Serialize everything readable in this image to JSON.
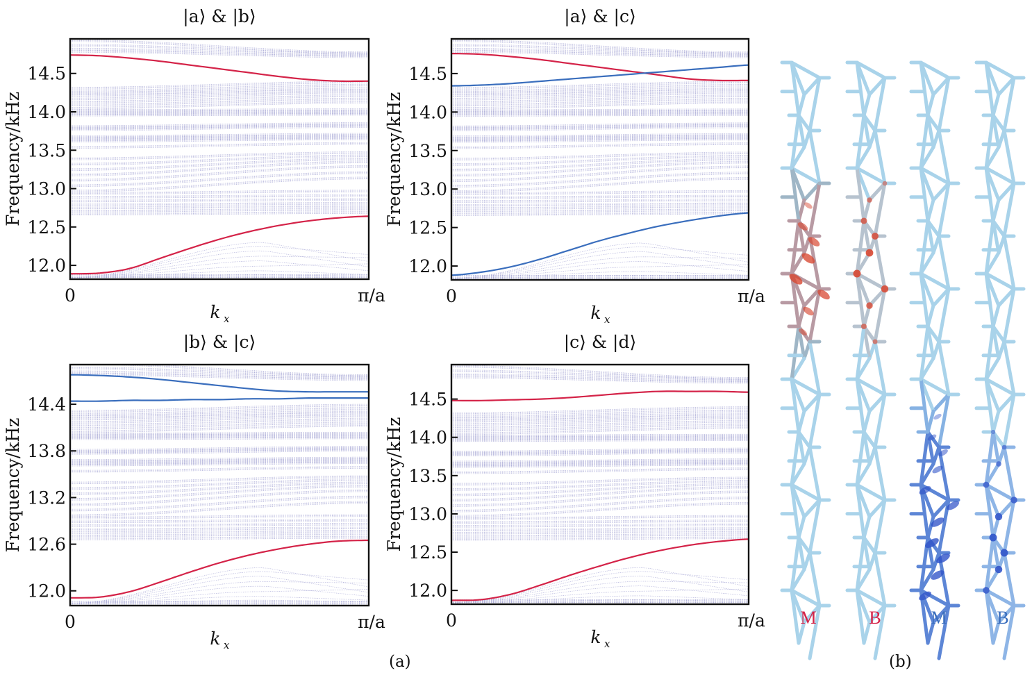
{
  "figure": {
    "panel_a_label": "(a)",
    "panel_b_label": "(b)"
  },
  "colors": {
    "red": "#d42348",
    "blue": "#3a6ebd",
    "bulk": "#a9a9d6",
    "axis": "#111111",
    "chain_base": "#a9d3ea",
    "chain_red_hot": "#d8452f",
    "chain_blue_hot": "#2f52c8"
  },
  "chart_data": [
    {
      "id": "ab",
      "type": "line",
      "title": "|a⟩ & |b⟩",
      "xlabel": "k_x",
      "xlabel_main": "k",
      "xlabel_sub": "x",
      "ylabel": "Frequency/kHz",
      "xtick_labels": [
        "0",
        "π/a"
      ],
      "xlim": [
        0,
        1
      ],
      "ylim": [
        11.82,
        14.95
      ],
      "yticks": [
        12.0,
        12.5,
        13.0,
        13.5,
        14.0,
        14.5
      ],
      "ytick_labels": [
        "12.0",
        "12.5",
        "13.0",
        "13.5",
        "14.0",
        "14.5"
      ],
      "x": [
        0,
        0.1,
        0.2,
        0.3,
        0.4,
        0.5,
        0.6,
        0.7,
        0.8,
        0.9,
        1.0
      ],
      "series": [
        {
          "name": "edge-upper",
          "color": "red",
          "values": [
            14.74,
            14.73,
            14.7,
            14.66,
            14.61,
            14.56,
            14.51,
            14.46,
            14.42,
            14.4,
            14.4
          ]
        },
        {
          "name": "edge-lower",
          "color": "red",
          "values": [
            11.89,
            11.9,
            11.96,
            12.09,
            12.22,
            12.34,
            12.44,
            12.52,
            12.58,
            12.62,
            12.64
          ]
        }
      ]
    },
    {
      "id": "ac",
      "type": "line",
      "title": "|a⟩ & |c⟩",
      "xlabel": "k_x",
      "xlabel_main": "k",
      "xlabel_sub": "x",
      "ylabel": "Frequency/kHz",
      "xtick_labels": [
        "0",
        "π/a"
      ],
      "xlim": [
        0,
        1
      ],
      "ylim": [
        11.82,
        14.95
      ],
      "yticks": [
        12.0,
        12.5,
        13.0,
        13.5,
        14.0,
        14.5
      ],
      "ytick_labels": [
        "12.0",
        "12.5",
        "13.0",
        "13.5",
        "14.0",
        "14.5"
      ],
      "x": [
        0,
        0.1,
        0.2,
        0.3,
        0.4,
        0.5,
        0.6,
        0.7,
        0.8,
        0.9,
        1.0
      ],
      "series": [
        {
          "name": "edge-upper-red",
          "color": "red",
          "values": [
            14.76,
            14.75,
            14.72,
            14.68,
            14.63,
            14.58,
            14.53,
            14.48,
            14.43,
            14.41,
            14.41
          ]
        },
        {
          "name": "edge-upper-blue",
          "color": "blue",
          "values": [
            14.34,
            14.35,
            14.37,
            14.4,
            14.43,
            14.46,
            14.49,
            14.52,
            14.55,
            14.58,
            14.61
          ]
        },
        {
          "name": "edge-lower-blue",
          "color": "blue",
          "values": [
            11.88,
            11.92,
            11.99,
            12.09,
            12.21,
            12.33,
            12.43,
            12.52,
            12.59,
            12.65,
            12.69
          ]
        }
      ]
    },
    {
      "id": "bc",
      "type": "line",
      "title": "|b⟩ & |c⟩",
      "xlabel": "k_x",
      "xlabel_main": "k",
      "xlabel_sub": "x",
      "ylabel": "Frequency/kHz",
      "xtick_labels": [
        "0",
        "π/a"
      ],
      "xlim": [
        0,
        1
      ],
      "ylim": [
        11.81,
        14.91
      ],
      "yticks": [
        12.0,
        12.6,
        13.2,
        13.8,
        14.4
      ],
      "ytick_labels": [
        "12.0",
        "12.6",
        "13.2",
        "13.8",
        "14.4"
      ],
      "x": [
        0,
        0.1,
        0.2,
        0.3,
        0.4,
        0.5,
        0.6,
        0.7,
        0.8,
        0.9,
        1.0
      ],
      "series": [
        {
          "name": "edge-upper-blue-1",
          "color": "blue",
          "values": [
            14.78,
            14.77,
            14.75,
            14.72,
            14.68,
            14.64,
            14.6,
            14.57,
            14.56,
            14.56,
            14.56
          ]
        },
        {
          "name": "edge-upper-blue-2",
          "color": "blue",
          "values": [
            14.44,
            14.44,
            14.45,
            14.45,
            14.46,
            14.46,
            14.47,
            14.47,
            14.48,
            14.48,
            14.48
          ]
        },
        {
          "name": "edge-lower-red",
          "color": "red",
          "values": [
            11.91,
            11.92,
            11.99,
            12.11,
            12.24,
            12.36,
            12.46,
            12.54,
            12.6,
            12.64,
            12.65
          ]
        }
      ]
    },
    {
      "id": "cd",
      "type": "line",
      "title": "|c⟩ & |d⟩",
      "xlabel": "k_x",
      "xlabel_main": "k",
      "xlabel_sub": "x",
      "ylabel": "Frequency/kHz",
      "xtick_labels": [
        "0",
        "π/a"
      ],
      "xlim": [
        0,
        1
      ],
      "ylim": [
        11.82,
        14.95
      ],
      "yticks": [
        12.0,
        12.5,
        13.0,
        13.5,
        14.0,
        14.5
      ],
      "ytick_labels": [
        "12.0",
        "12.5",
        "13.0",
        "13.5",
        "14.0",
        "14.5"
      ],
      "x": [
        0,
        0.1,
        0.2,
        0.3,
        0.4,
        0.5,
        0.6,
        0.7,
        0.8,
        0.9,
        1.0
      ],
      "series": [
        {
          "name": "edge-upper-red",
          "color": "red",
          "values": [
            14.48,
            14.48,
            14.49,
            14.5,
            14.52,
            14.55,
            14.58,
            14.6,
            14.6,
            14.6,
            14.59
          ]
        },
        {
          "name": "edge-lower-red",
          "color": "red",
          "values": [
            11.87,
            11.88,
            11.95,
            12.07,
            12.2,
            12.32,
            12.43,
            12.52,
            12.59,
            12.64,
            12.67
          ]
        }
      ]
    }
  ],
  "bulk_bands": {
    "description": "dense dotted bulk-mode bands (light purple) drawn behind edge modes",
    "groups": [
      {
        "start": [
          14.94,
          14.88,
          14.83,
          14.8
        ],
        "end": [
          14.78,
          14.77,
          14.75,
          14.73
        ]
      },
      {
        "start": [
          14.32,
          14.28,
          14.25,
          14.22,
          14.18,
          14.14,
          14.1,
          14.06
        ],
        "end": [
          14.4,
          14.36,
          14.32,
          14.29,
          14.26,
          14.22,
          14.18,
          14.14
        ]
      },
      {
        "start": [
          14.03,
          14.01,
          13.99,
          13.97
        ],
        "end": [
          14.04,
          14.02,
          14.0,
          13.98
        ]
      },
      {
        "start": [
          13.82,
          13.8,
          13.78,
          13.69,
          13.67,
          13.65,
          13.63
        ],
        "end": [
          13.86,
          13.84,
          13.82,
          13.72,
          13.7,
          13.68,
          13.66
        ]
      },
      {
        "start": [
          13.55,
          13.4,
          13.33,
          13.26,
          13.19,
          13.12,
          13.05,
          12.98
        ],
        "end": [
          13.6,
          13.48,
          13.44,
          13.4,
          13.36,
          13.3,
          13.22,
          13.15
        ]
      },
      {
        "start": [
          12.95,
          12.9,
          12.85,
          12.8,
          12.76,
          12.72,
          12.68
        ],
        "end": [
          12.98,
          12.92,
          12.87,
          12.82,
          12.78,
          12.74,
          12.7
        ]
      }
    ],
    "low_branches": [
      {
        "start": 11.84,
        "peak": 12.3,
        "end": 12.05
      },
      {
        "start": 11.84,
        "peak": 12.25,
        "end": 12.14
      },
      {
        "start": 11.84,
        "peak": 12.19,
        "end": 11.98
      },
      {
        "start": 11.84,
        "peak": 12.12,
        "end": 12.1
      },
      {
        "start": 11.84,
        "peak": 12.06,
        "end": 11.93
      },
      {
        "start": 11.84,
        "peak": 11.99,
        "end": 12.02
      },
      {
        "start": 11.84,
        "peak": 11.93,
        "end": 11.88
      },
      {
        "start": 11.84,
        "peak": 11.88,
        "end": 11.86
      }
    ]
  },
  "chains": [
    {
      "label": "M",
      "label_color": "red",
      "mode": "red-bonds",
      "hot_center": 0.38,
      "hot_width": 0.16
    },
    {
      "label": "B",
      "label_color": "red",
      "mode": "red-nodes",
      "hot_center": 0.38,
      "hot_width": 0.2
    },
    {
      "label": "M",
      "label_color": "blue",
      "mode": "blue-bonds",
      "hot_center": 0.9,
      "hot_width": 0.3
    },
    {
      "label": "B",
      "label_color": "blue",
      "mode": "blue-nodes",
      "hot_center": 0.9,
      "hot_width": 0.25
    }
  ]
}
